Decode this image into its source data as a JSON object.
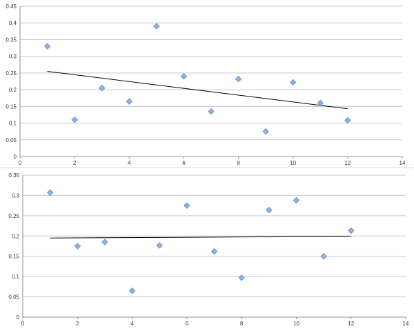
{
  "chart_data": [
    {
      "type": "scatter",
      "title": "",
      "xlabel": "",
      "ylabel": "",
      "xlim": [
        0,
        14
      ],
      "ylim": [
        0,
        0.45
      ],
      "x_ticks": [
        "0",
        "2",
        "4",
        "6",
        "8",
        "10",
        "12",
        "14"
      ],
      "y_ticks": [
        "0",
        "0.05",
        "0.1",
        "0.15",
        "0.2",
        "0.25",
        "0.3",
        "0.35",
        "0.4",
        "0.45"
      ],
      "grid": true,
      "legend": "none",
      "marker_color": "#8db3e2",
      "trendline_color": "#000000",
      "x": [
        1,
        2,
        3,
        4,
        5,
        6,
        7,
        8,
        9,
        10,
        11,
        12
      ],
      "y": [
        0.33,
        0.11,
        0.205,
        0.165,
        0.39,
        0.24,
        0.135,
        0.232,
        0.075,
        0.222,
        0.16,
        0.108
      ],
      "trendline": {
        "x": [
          1,
          12
        ],
        "y": [
          0.255,
          0.143
        ]
      }
    },
    {
      "type": "scatter",
      "title": "",
      "xlabel": "",
      "ylabel": "",
      "xlim": [
        0,
        14
      ],
      "ylim": [
        0,
        0.35
      ],
      "x_ticks": [
        "0",
        "2",
        "4",
        "6",
        "8",
        "10",
        "12",
        "14"
      ],
      "y_ticks": [
        "0",
        "0.05",
        "0.1",
        "0.15",
        "0.2",
        "0.25",
        "0.3",
        "0.35"
      ],
      "grid": true,
      "legend": "none",
      "marker_color": "#8db3e2",
      "trendline_color": "#000000",
      "x": [
        1,
        2,
        3,
        4,
        5,
        6,
        7,
        8,
        9,
        10,
        11,
        12
      ],
      "y": [
        0.307,
        0.175,
        0.185,
        0.065,
        0.177,
        0.275,
        0.162,
        0.097,
        0.264,
        0.288,
        0.15,
        0.213
      ],
      "trendline": {
        "x": [
          1,
          12
        ],
        "y": [
          0.195,
          0.199
        ]
      }
    }
  ]
}
